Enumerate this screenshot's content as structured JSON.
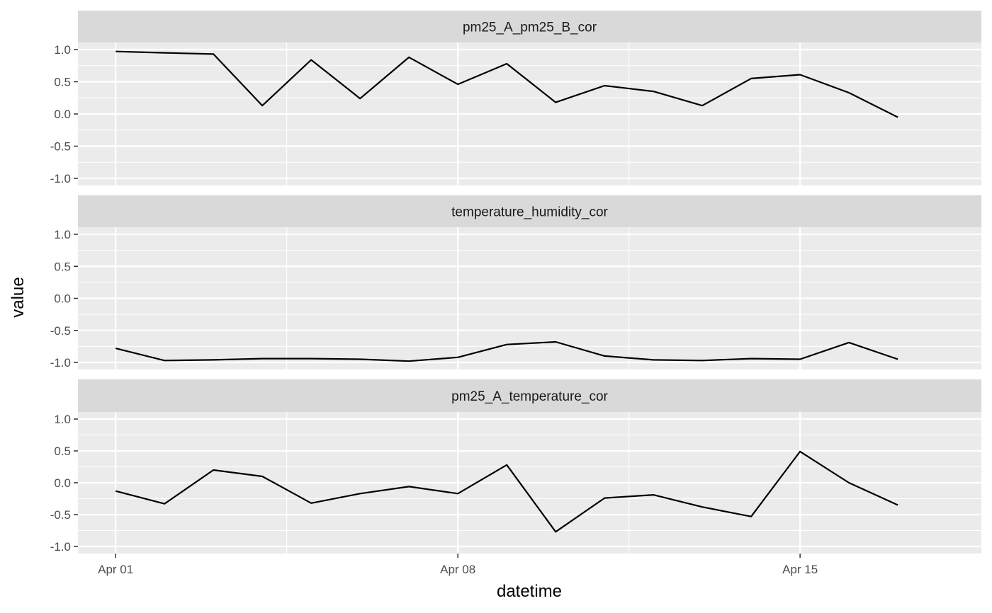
{
  "chart_data": {
    "type": "line",
    "xlabel": "datetime",
    "ylabel": "value",
    "ylim": [
      -1.0,
      1.0
    ],
    "yticks": [
      -1.0,
      -0.5,
      0.0,
      0.5,
      1.0
    ],
    "ytick_labels": [
      "-1.0",
      "-0.5",
      "0.0",
      "0.5",
      "1.0"
    ],
    "xlim": [
      "2021-03-31T05:30",
      "2021-04-18T17:00"
    ],
    "xticks": [
      "2021-04-01",
      "2021-04-08",
      "2021-04-15"
    ],
    "xtick_labels": [
      "Apr 01",
      "Apr 08",
      "Apr 15"
    ],
    "x": [
      "2021-04-01",
      "2021-04-02",
      "2021-04-03",
      "2021-04-04",
      "2021-04-05",
      "2021-04-06",
      "2021-04-07",
      "2021-04-08",
      "2021-04-09",
      "2021-04-10",
      "2021-04-11",
      "2021-04-12",
      "2021-04-13",
      "2021-04-14",
      "2021-04-15",
      "2021-04-16",
      "2021-04-17"
    ],
    "grid": true,
    "line_color": "#000000",
    "panel_background": "#ebebeb",
    "strip_background": "#d9d9d9",
    "facets": [
      {
        "name": "pm25_A_pm25_B_cor",
        "values": [
          0.97,
          0.95,
          0.93,
          0.13,
          0.84,
          0.24,
          0.88,
          0.46,
          0.78,
          0.18,
          0.44,
          0.35,
          0.13,
          0.55,
          0.61,
          0.33,
          -0.05
        ]
      },
      {
        "name": "temperature_humidity_cor",
        "values": [
          -0.78,
          -0.97,
          -0.96,
          -0.94,
          -0.94,
          -0.95,
          -0.98,
          -0.92,
          -0.72,
          -0.68,
          -0.9,
          -0.96,
          -0.97,
          -0.94,
          -0.95,
          -0.69,
          -0.95
        ]
      },
      {
        "name": "pm25_A_temperature_cor",
        "values": [
          -0.13,
          -0.33,
          0.2,
          0.1,
          -0.32,
          -0.17,
          -0.06,
          -0.17,
          0.28,
          -0.77,
          -0.24,
          -0.19,
          -0.38,
          -0.53,
          0.49,
          0.0,
          -0.35
        ]
      }
    ]
  }
}
